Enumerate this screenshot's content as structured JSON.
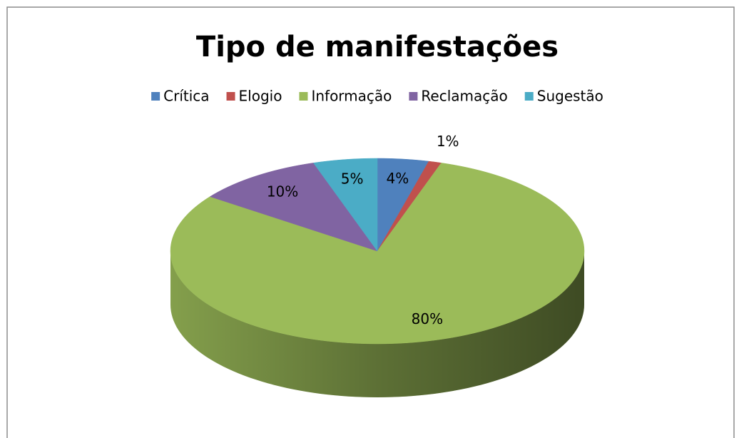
{
  "chart_data": {
    "type": "pie",
    "title": "Tipo de manifestações",
    "categories": [
      "Crítica",
      "Elogio",
      "Informação",
      "Reclamação",
      "Sugestão"
    ],
    "values": [
      4,
      1,
      80,
      10,
      5
    ],
    "value_labels": [
      "4%",
      "1%",
      "80%",
      "10%",
      "5%"
    ],
    "colors": [
      "#4f81bd",
      "#c0504d",
      "#9bbb59",
      "#8064a2",
      "#4bacc6"
    ],
    "legend": "top"
  }
}
